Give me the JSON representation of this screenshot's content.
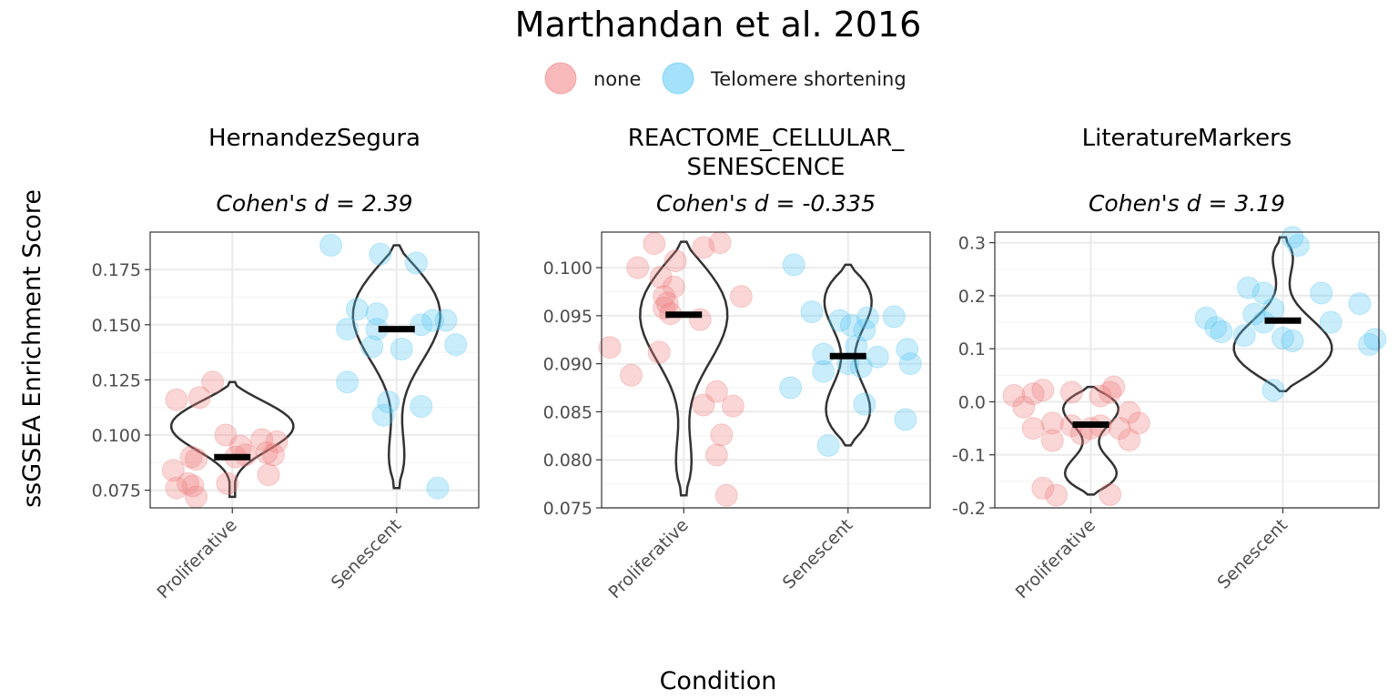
{
  "chart_data": {
    "type": "scatter",
    "title": "Marthandan et al. 2016",
    "xlabel": "Condition",
    "ylabel": "ssGSEA Enrichment Score",
    "legend": {
      "placement": "top",
      "entries": [
        {
          "label": "none",
          "color": "#F08080"
        },
        {
          "label": "Telomere shortening",
          "color": "#5AC8F5"
        }
      ]
    },
    "categories": [
      "Proliferative",
      "Senescent"
    ],
    "facets": [
      {
        "strip": [
          "HernandezSegura"
        ],
        "subtitle": "Cohen's d = 2.39",
        "ylim": [
          0.067,
          0.192
        ],
        "yticks": [
          0.075,
          0.1,
          0.125,
          0.15,
          0.175
        ],
        "yticklabels": [
          "0.075",
          "0.100",
          "0.125",
          "0.150",
          "0.175"
        ],
        "medians": [
          0.09,
          0.148
        ],
        "ranges": [
          [
            0.072,
            0.124
          ],
          [
            0.076,
            0.186
          ]
        ],
        "points": [
          [
            [
              -0.34,
              0.116
            ],
            [
              -0.36,
              0.084
            ],
            [
              -0.34,
              0.076
            ],
            [
              -0.27,
              0.078
            ],
            [
              -0.24,
              0.077
            ],
            [
              -0.22,
              0.072
            ],
            [
              -0.2,
              0.117
            ],
            [
              -0.12,
              0.124
            ],
            [
              -0.25,
              0.09
            ],
            [
              -0.22,
              0.089
            ],
            [
              -0.03,
              0.078
            ],
            [
              -0.04,
              0.1
            ],
            [
              0.05,
              0.095
            ],
            [
              0.08,
              0.091
            ],
            [
              0.02,
              0.09
            ],
            [
              0.18,
              0.098
            ],
            [
              0.21,
              0.092
            ],
            [
              0.25,
              0.091
            ],
            [
              0.22,
              0.082
            ],
            [
              0.27,
              0.097
            ]
          ],
          [
            [
              -0.4,
              0.186
            ],
            [
              -0.3,
              0.148
            ],
            [
              -0.24,
              0.157
            ],
            [
              -0.15,
              0.14
            ],
            [
              -0.12,
              0.148
            ],
            [
              -0.1,
              0.182
            ],
            [
              -0.12,
              0.155
            ],
            [
              -0.3,
              0.124
            ],
            [
              0.03,
              0.139
            ],
            [
              -0.05,
              0.115
            ],
            [
              -0.08,
              0.109
            ],
            [
              0.12,
              0.178
            ],
            [
              0.15,
              0.15
            ],
            [
              0.22,
              0.152
            ],
            [
              0.15,
              0.113
            ],
            [
              0.3,
              0.152
            ],
            [
              0.36,
              0.141
            ],
            [
              0.25,
              0.076
            ]
          ]
        ]
      },
      {
        "strip": [
          "REACTOME_CELLULAR_",
          "SENESCENCE"
        ],
        "subtitle": "Cohen's d = -0.335",
        "ylim": [
          0.075,
          0.1037
        ],
        "yticks": [
          0.075,
          0.08,
          0.085,
          0.09,
          0.095,
          0.1
        ],
        "yticklabels": [
          "0.075",
          "0.080",
          "0.085",
          "0.090",
          "0.095",
          "0.100"
        ],
        "medians": [
          0.0951,
          0.0908
        ],
        "ranges": [
          [
            0.0763,
            0.1027
          ],
          [
            0.0815,
            0.1003
          ]
        ],
        "points": [
          [
            [
              -0.45,
              0.0917
            ],
            [
              -0.32,
              0.0888
            ],
            [
              -0.28,
              0.1
            ],
            [
              -0.18,
              0.1025
            ],
            [
              -0.14,
              0.099
            ],
            [
              -0.1,
              0.0963
            ],
            [
              -0.12,
              0.0958
            ],
            [
              -0.08,
              0.0952
            ],
            [
              -0.05,
              0.1007
            ],
            [
              -0.06,
              0.098
            ],
            [
              -0.12,
              0.097
            ],
            [
              0.1,
              0.0946
            ],
            [
              0.12,
              0.1021
            ],
            [
              0.22,
              0.1026
            ],
            [
              0.35,
              0.097
            ],
            [
              -0.15,
              0.0912
            ],
            [
              0.12,
              0.0857
            ],
            [
              0.2,
              0.0871
            ],
            [
              0.3,
              0.0856
            ],
            [
              0.23,
              0.0826
            ],
            [
              0.2,
              0.0805
            ],
            [
              0.26,
              0.0763
            ]
          ],
          [
            [
              -0.33,
              0.1003
            ],
            [
              -0.35,
              0.0875
            ],
            [
              -0.22,
              0.0954
            ],
            [
              -0.15,
              0.091
            ],
            [
              -0.15,
              0.0892
            ],
            [
              -0.05,
              0.0945
            ],
            [
              0.0,
              0.09
            ],
            [
              0.02,
              0.094
            ],
            [
              0.05,
              0.0918
            ],
            [
              0.08,
              0.0897
            ],
            [
              0.1,
              0.0935
            ],
            [
              0.12,
              0.0948
            ],
            [
              0.18,
              0.0907
            ],
            [
              0.28,
              0.0949
            ],
            [
              0.38,
              0.09
            ],
            [
              0.36,
              0.0915
            ],
            [
              0.35,
              0.0842
            ],
            [
              0.1,
              0.0858
            ],
            [
              -0.12,
              0.0815
            ]
          ]
        ]
      },
      {
        "strip": [
          "LiteratureMarkers"
        ],
        "subtitle": "Cohen's d = 3.19",
        "ylim": [
          -0.2,
          0.32
        ],
        "yticks": [
          -0.2,
          -0.1,
          0.0,
          0.1,
          0.2,
          0.3
        ],
        "yticklabels": [
          "-0.2",
          "-0.1",
          "0.0",
          "0.1",
          "0.2",
          "0.3"
        ],
        "medians": [
          -0.043,
          0.153
        ],
        "ranges": [
          [
            -0.175,
            0.028
          ],
          [
            0.02,
            0.31
          ]
        ],
        "points": [
          [
            [
              -0.4,
              0.012
            ],
            [
              -0.3,
              0.015
            ],
            [
              -0.25,
              0.022
            ],
            [
              -0.1,
              0.018
            ],
            [
              0.05,
              0.011
            ],
            [
              0.1,
              0.018
            ],
            [
              0.12,
              0.028
            ],
            [
              -0.35,
              -0.01
            ],
            [
              -0.2,
              -0.04
            ],
            [
              -0.3,
              -0.05
            ],
            [
              -0.1,
              -0.045
            ],
            [
              -0.05,
              -0.06
            ],
            [
              0.0,
              -0.05
            ],
            [
              -0.2,
              -0.073
            ],
            [
              0.05,
              -0.045
            ],
            [
              0.2,
              -0.02
            ],
            [
              0.25,
              -0.04
            ],
            [
              0.2,
              -0.072
            ],
            [
              -0.25,
              -0.163
            ],
            [
              -0.18,
              -0.176
            ],
            [
              0.1,
              -0.175
            ],
            [
              0.15,
              -0.05
            ]
          ],
          [
            [
              -0.4,
              0.158
            ],
            [
              -0.35,
              0.14
            ],
            [
              -0.32,
              0.132
            ],
            [
              -0.18,
              0.215
            ],
            [
              -0.15,
              0.165
            ],
            [
              -0.1,
              0.205
            ],
            [
              -0.05,
              0.175
            ],
            [
              -0.2,
              0.125
            ],
            [
              -0.1,
              0.15
            ],
            [
              0.0,
              0.12
            ],
            [
              0.05,
              0.115
            ],
            [
              0.2,
              0.205
            ],
            [
              0.25,
              0.15
            ],
            [
              0.4,
              0.185
            ],
            [
              0.48,
              0.118
            ],
            [
              0.45,
              0.108
            ],
            [
              -0.05,
              0.022
            ],
            [
              0.05,
              0.31
            ],
            [
              0.08,
              0.295
            ]
          ]
        ]
      }
    ]
  }
}
